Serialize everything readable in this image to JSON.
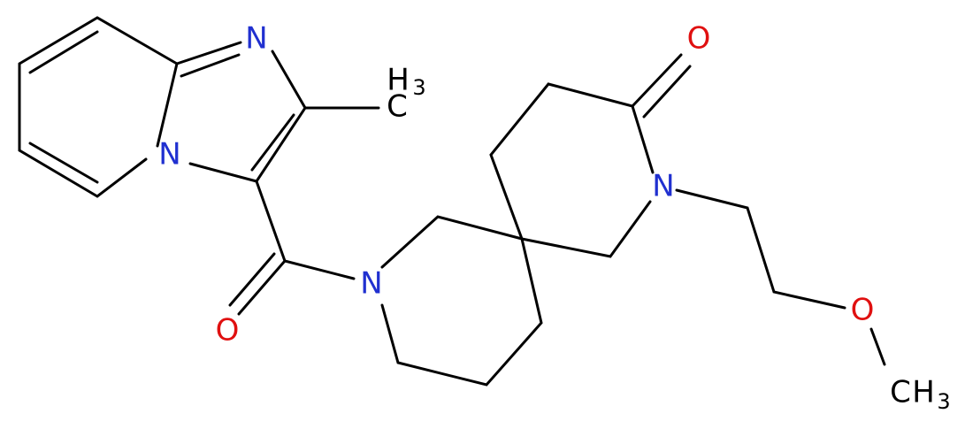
{
  "atoms": [
    {
      "label": "N"
    },
    {
      "label": "N"
    },
    {
      "label": "N"
    },
    {
      "label": "N"
    },
    {
      "label": "O"
    },
    {
      "label": "O"
    },
    {
      "label": "O"
    }
  ],
  "methyls": [
    {
      "c": "C",
      "h": "H",
      "sub": "3"
    },
    {
      "c": "C",
      "h": "H",
      "sub": "3"
    }
  ]
}
